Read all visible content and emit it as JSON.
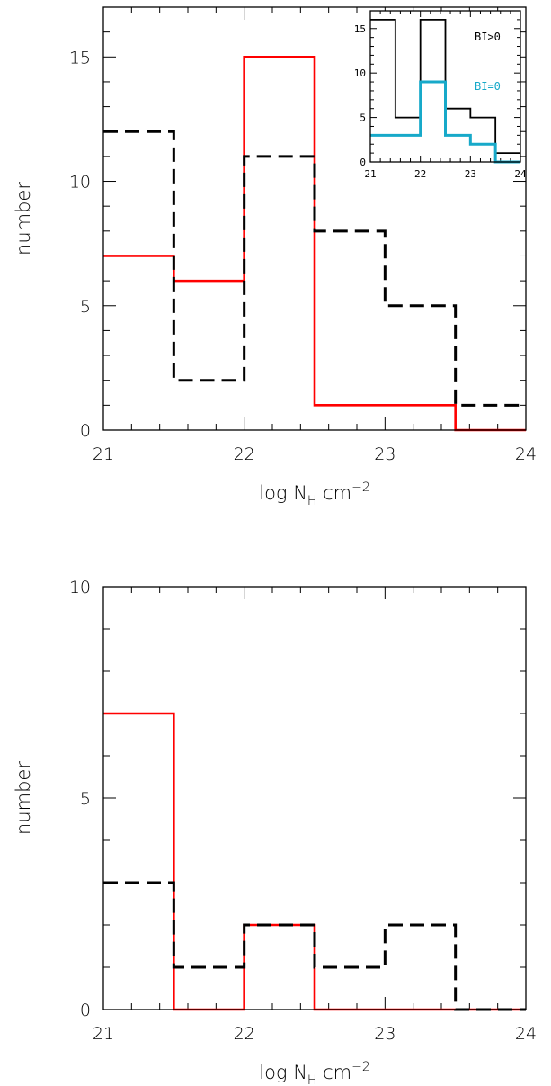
{
  "chart_data": [
    {
      "type": "histogram-step",
      "xlabel": {
        "base": "log N",
        "sub": "H",
        "unit": " cm",
        "sup": "−2"
      },
      "ylabel": "number",
      "xlim": [
        21,
        24
      ],
      "ylim": [
        0,
        17
      ],
      "x_ticks": [
        "21",
        "22",
        "23",
        "24"
      ],
      "y_ticks": [
        "0",
        "5",
        "10",
        "15"
      ],
      "bin_edges": [
        21,
        21.5,
        22,
        22.5,
        23,
        23.5,
        24
      ],
      "series": [
        {
          "style": "solid",
          "color": "#ff0000",
          "values": [
            7,
            6,
            15,
            1,
            1,
            0
          ]
        },
        {
          "style": "dashed",
          "color": "#000000",
          "values": [
            12,
            2,
            11,
            8,
            5,
            1
          ]
        }
      ],
      "inset": {
        "xlim": [
          21,
          24
        ],
        "ylim": [
          0,
          17
        ],
        "x_ticks": [
          "21",
          "22",
          "23",
          "24"
        ],
        "y_ticks": [
          "0",
          "5",
          "10",
          "15"
        ],
        "bin_edges": [
          21,
          21.5,
          22,
          22.5,
          23,
          23.5,
          24
        ],
        "series": [
          {
            "name": "BI>0",
            "color": "#000000",
            "values": [
              16,
              5,
              16,
              6,
              5,
              1
            ]
          },
          {
            "name": "BI=0",
            "color": "#17a9c9",
            "values": [
              3,
              3,
              9,
              3,
              2,
              0
            ]
          }
        ]
      }
    },
    {
      "type": "histogram-step",
      "xlabel": {
        "base": "log N",
        "sub": "H",
        "unit": " cm",
        "sup": "−2"
      },
      "ylabel": "number",
      "xlim": [
        21,
        24
      ],
      "ylim": [
        0,
        10
      ],
      "x_ticks": [
        "21",
        "22",
        "23",
        "24"
      ],
      "y_ticks": [
        "0",
        "5",
        "10"
      ],
      "bin_edges": [
        21,
        21.5,
        22,
        22.5,
        23,
        23.5,
        24
      ],
      "series": [
        {
          "style": "solid",
          "color": "#ff0000",
          "values": [
            7,
            0,
            2,
            0,
            0,
            0
          ]
        },
        {
          "style": "dashed",
          "color": "#000000",
          "values": [
            3,
            1,
            2,
            1,
            2,
            0
          ]
        }
      ]
    }
  ]
}
